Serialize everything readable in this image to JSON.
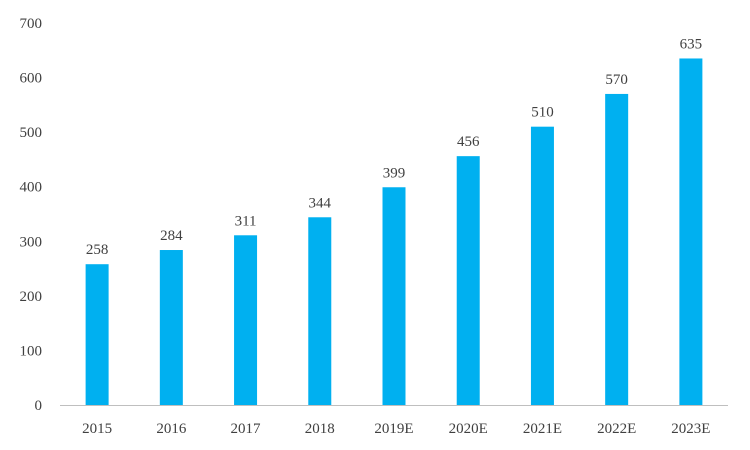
{
  "chart_data": {
    "type": "bar",
    "categories": [
      "2015",
      "2016",
      "2017",
      "2018",
      "2019E",
      "2020E",
      "2021E",
      "2022E",
      "2023E"
    ],
    "values": [
      258,
      284,
      311,
      344,
      399,
      456,
      510,
      570,
      635
    ],
    "data_labels": [
      "258",
      "284",
      "311",
      "344",
      "399",
      "456",
      "510",
      "570",
      "635"
    ],
    "y_ticks": [
      "0",
      "100",
      "200",
      "300",
      "400",
      "500",
      "600",
      "700"
    ],
    "ylim": [
      0,
      700
    ],
    "title": "",
    "xlabel": "",
    "ylabel": "",
    "grid": false,
    "legend": "none",
    "bar_color": "#00B0F0",
    "axis_color": "#BFBFBF"
  }
}
